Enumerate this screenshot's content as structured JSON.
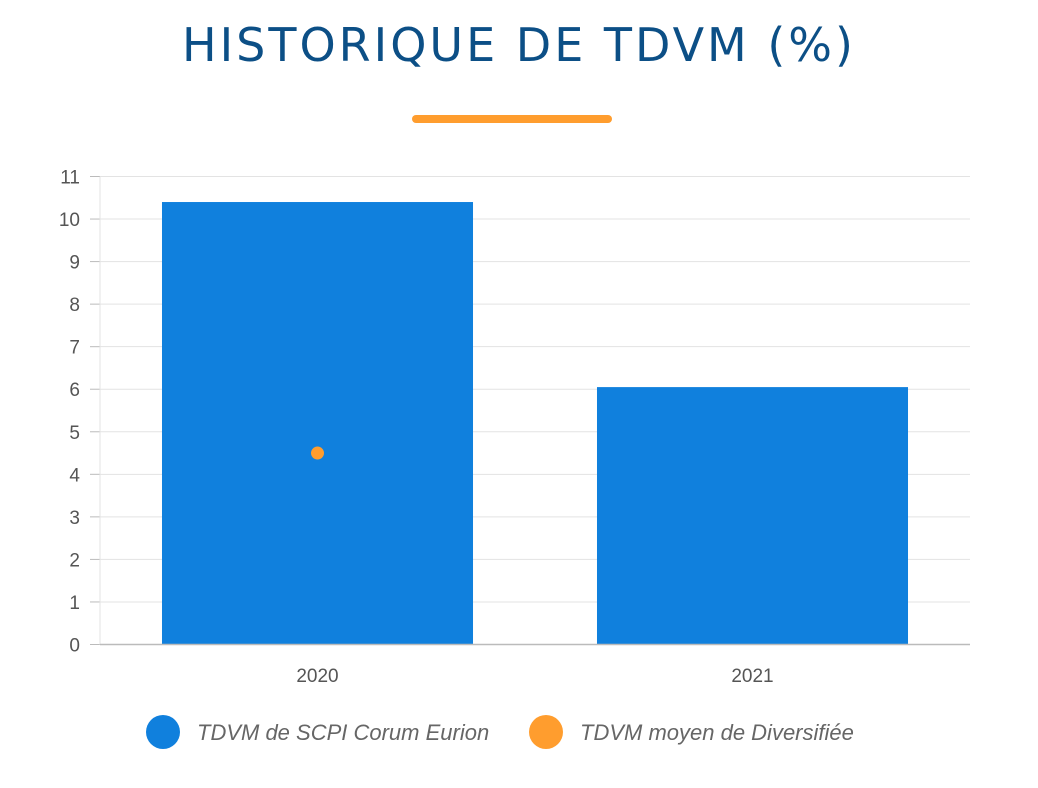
{
  "title": "HISTORIQUE DE TDVM (%)",
  "colors": {
    "title": "#0c4f86",
    "accent": "#ff9d2e",
    "bar": "#1080dd",
    "grid": "#e3e3e3",
    "axis": "#bbbbbb"
  },
  "chart_data": {
    "type": "bar",
    "categories": [
      "2020",
      "2021"
    ],
    "ylim": [
      0,
      11
    ],
    "yticks": [
      0,
      1,
      2,
      3,
      4,
      5,
      6,
      7,
      8,
      9,
      10,
      11
    ],
    "grid": true,
    "legend_position": "bottom",
    "series": [
      {
        "name": "TDVM de SCPI Corum Eurion",
        "type": "bar",
        "color": "#1080dd",
        "values": [
          10.4,
          6.05
        ]
      },
      {
        "name": "TDVM moyen de Diversifiée",
        "type": "point",
        "color": "#ff9d2e",
        "values": [
          4.5,
          null
        ]
      }
    ]
  }
}
